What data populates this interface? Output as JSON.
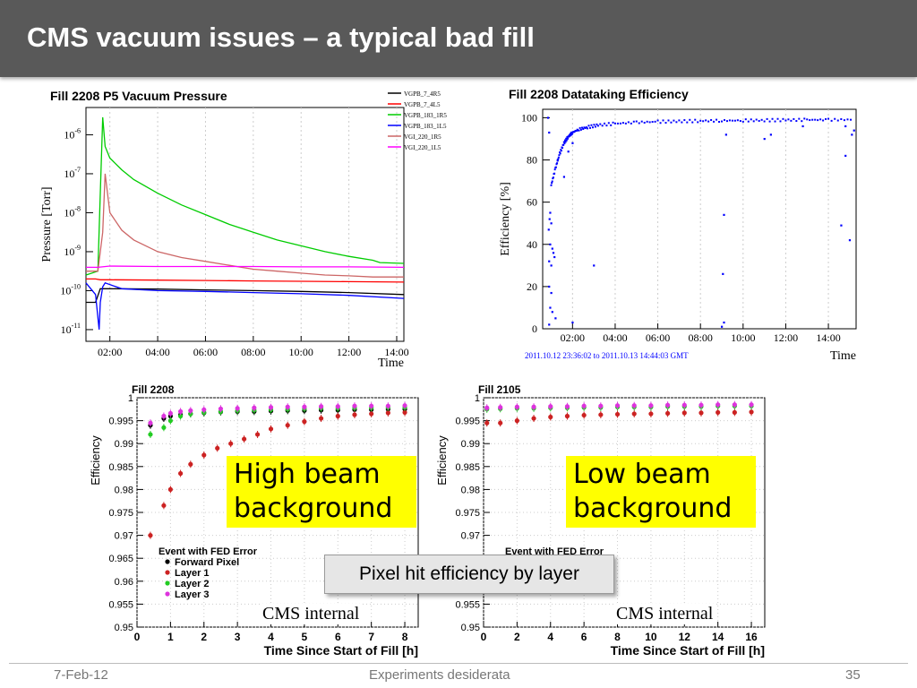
{
  "slide": {
    "title": "CMS vacuum issues – a typical bad fill",
    "footer": {
      "date": "7-Feb-12",
      "center": "Experiments desiderata",
      "page": "35"
    }
  },
  "colors": {
    "title_bar": "#595959",
    "callout_yellow": "#ffff00",
    "callout_gray": "#e6e6e6"
  },
  "callouts": {
    "high_beam": "High beam\nbackground",
    "low_beam": "Low beam\nbackground",
    "pixel_hit": "Pixel hit efficiency by layer",
    "cms_internal_1": "CMS internal",
    "cms_internal_2": "CMS internal"
  },
  "chart_data": [
    {
      "id": "pressure",
      "type": "line",
      "title": "Fill 2208 P5 Vacuum Pressure",
      "xlabel": "Time",
      "ylabel": "Pressure [Torr]",
      "log_y": true,
      "xlim": [
        1.0,
        14.3
      ],
      "ylim_exp": [
        -11.3,
        -5.3
      ],
      "x_ticks": [
        "02:00",
        "04:00",
        "06:00",
        "08:00",
        "10:00",
        "12:00",
        "14:00"
      ],
      "x_tick_hours": [
        2,
        4,
        6,
        8,
        10,
        12,
        14
      ],
      "y_tick_exps": [
        -11,
        -10,
        -9,
        -8,
        -7,
        -6
      ],
      "y_tick_labels": [
        [
          "10",
          "-11"
        ],
        [
          "10",
          "-10"
        ],
        [
          "10",
          "-9"
        ],
        [
          "10",
          "-8"
        ],
        [
          "10",
          "-7"
        ],
        [
          "10",
          "-6"
        ]
      ],
      "series": [
        {
          "name": "VGPB_7_4R5",
          "color": "#000000",
          "x": [
            1.0,
            1.4,
            1.6,
            2,
            4,
            6,
            8,
            10,
            12,
            14.3
          ],
          "log10_y": [
            -10.3,
            -10.3,
            -9.95,
            -9.95,
            -9.96,
            -9.98,
            -10.0,
            -10.02,
            -10.05,
            -10.1
          ]
        },
        {
          "name": "VGPB_7_4L5",
          "color": "#ff0000",
          "x": [
            1.0,
            1.4,
            1.6,
            2,
            4,
            6,
            8,
            10,
            12,
            14.3
          ],
          "log10_y": [
            -9.7,
            -9.7,
            -9.72,
            -9.72,
            -9.73,
            -9.74,
            -9.75,
            -9.76,
            -9.77,
            -9.78
          ]
        },
        {
          "name": "VGPB_183_1R5",
          "color": "#00cc00",
          "x": [
            1.0,
            1.5,
            1.6,
            1.7,
            1.8,
            2.0,
            2.5,
            3,
            4,
            5,
            6,
            7,
            8,
            9,
            10,
            11,
            12,
            13,
            13.3,
            14.3
          ],
          "log10_y": [
            -9.6,
            -9.5,
            -7.5,
            -5.55,
            -6.3,
            -6.6,
            -6.9,
            -7.15,
            -7.5,
            -7.8,
            -8.05,
            -8.3,
            -8.5,
            -8.7,
            -8.85,
            -9.0,
            -9.12,
            -9.22,
            -9.28,
            -9.3
          ]
        },
        {
          "name": "VGPB_183_1L5",
          "color": "#0000ff",
          "x": [
            1.0,
            1.4,
            1.55,
            1.6,
            1.7,
            1.8,
            2.5,
            4,
            6,
            8,
            10,
            12,
            14.3
          ],
          "log10_y": [
            -9.8,
            -10.1,
            -11.0,
            -10.3,
            -9.9,
            -9.8,
            -9.95,
            -10.0,
            -10.02,
            -10.05,
            -10.08,
            -10.12,
            -10.2
          ]
        },
        {
          "name": "VGI_220_1R5",
          "color": "#cc6666",
          "x": [
            1.0,
            1.5,
            1.7,
            1.8,
            2.0,
            2.5,
            3,
            4,
            5,
            6,
            7,
            8,
            9,
            10,
            11,
            12,
            13,
            14.3
          ],
          "log10_y": [
            -9.5,
            -9.5,
            -8.5,
            -7.0,
            -8.0,
            -8.45,
            -8.7,
            -9.0,
            -9.15,
            -9.25,
            -9.35,
            -9.45,
            -9.5,
            -9.55,
            -9.6,
            -9.62,
            -9.65,
            -9.65
          ]
        },
        {
          "name": "VGI_220_1L5",
          "color": "#ff00ff",
          "x": [
            1.0,
            1.5,
            2,
            4,
            6,
            8,
            10,
            12,
            14.3
          ],
          "log10_y": [
            -9.4,
            -9.4,
            -9.37,
            -9.38,
            -9.38,
            -9.38,
            -9.39,
            -9.39,
            -9.4
          ]
        }
      ]
    },
    {
      "id": "datataking",
      "type": "scatter",
      "title": "Fill 2208 Datataking Efficiency",
      "xlabel": "Time",
      "ylabel": "Efficiency [%]",
      "subtitle": "2011.10.12 23:36:02 to 2011.10.13 14:44:03 GMT",
      "xlim": [
        0.6,
        15.3
      ],
      "ylim": [
        0,
        104
      ],
      "x_ticks": [
        "02:00",
        "04:00",
        "06:00",
        "08:00",
        "10:00",
        "12:00",
        "14:00"
      ],
      "x_tick_hours": [
        2,
        4,
        6,
        8,
        10,
        12,
        14
      ],
      "y_ticks": [
        0,
        20,
        40,
        60,
        80,
        100
      ],
      "color": "#0000ff",
      "curve": {
        "x": [
          1.0,
          1.2,
          1.4,
          1.6,
          1.8,
          2.0,
          2.3,
          2.7,
          3.2,
          4.0,
          5.0,
          6.0,
          7.0,
          8.0,
          9.0,
          10.0,
          11.0,
          12.0,
          13.0,
          14.0,
          15.2
        ],
        "y": [
          68,
          76,
          83,
          88,
          91,
          93,
          94.5,
          95.5,
          96.5,
          97.2,
          97.8,
          98.1,
          98.3,
          98.5,
          98.6,
          98.7,
          98.8,
          98.9,
          99,
          99,
          99.1
        ]
      },
      "scatter": {
        "x": [
          0.85,
          0.9,
          0.95,
          0.92,
          1.0,
          0.88,
          0.95,
          1.05,
          1.1,
          0.9,
          1.0,
          1.15,
          0.9,
          1.0,
          0.95,
          1.05,
          1.2,
          0.9,
          1.3,
          1.6,
          1.8,
          2.0,
          9.1,
          9.05,
          9.0,
          9.1,
          9.2,
          14.6,
          14.8,
          14.8,
          15.1,
          15.0,
          15.2,
          11.0,
          11.3,
          12.8,
          3.0,
          2.0
        ],
        "y": [
          100,
          93,
          55,
          52,
          50,
          47,
          40,
          38,
          36,
          32,
          30,
          34,
          20,
          17,
          10,
          8,
          5,
          2,
          80,
          72,
          84,
          88,
          54,
          26,
          1,
          3,
          92,
          49,
          82,
          96,
          92,
          42,
          94,
          90,
          92,
          96,
          30,
          3
        ]
      }
    },
    {
      "id": "fill2208",
      "type": "scatter",
      "title": "Fill 2208",
      "xlabel": "Time Since Start of Fill [h]",
      "ylabel": "Efficiency",
      "xlim": [
        0,
        8.4
      ],
      "ylim": [
        0.95,
        1.0
      ],
      "x_ticks": [
        0,
        1,
        2,
        3,
        4,
        5,
        6,
        7,
        8
      ],
      "y_ticks": [
        0.95,
        0.955,
        0.96,
        0.965,
        0.97,
        0.975,
        0.98,
        0.985,
        0.99,
        0.995,
        1
      ],
      "legend_title": "Event with FED Error",
      "series": [
        {
          "name": "Forward Pixel",
          "color": "#000000",
          "x": [
            0.4,
            0.8,
            1.0,
            1.3,
            1.6,
            2.0,
            2.5,
            3.0,
            3.5,
            4.0,
            4.5,
            5.0,
            5.5,
            6.0,
            6.5,
            7.0,
            7.5,
            8.0
          ],
          "y": [
            0.994,
            0.9955,
            0.996,
            0.9963,
            0.9965,
            0.9967,
            0.9969,
            0.997,
            0.997,
            0.9971,
            0.9972,
            0.9972,
            0.9973,
            0.9973,
            0.9974,
            0.9974,
            0.9975,
            0.9975
          ]
        },
        {
          "name": "Layer 1",
          "color": "#cc2222",
          "x": [
            0.4,
            0.8,
            1.0,
            1.3,
            1.6,
            2.0,
            2.4,
            2.8,
            3.2,
            3.6,
            4.0,
            4.5,
            5.0,
            5.5,
            6.0,
            6.5,
            7.0,
            7.5,
            8.0
          ],
          "y": [
            0.97,
            0.9765,
            0.98,
            0.9835,
            0.9855,
            0.9875,
            0.989,
            0.99,
            0.991,
            0.992,
            0.9932,
            0.994,
            0.9948,
            0.9955,
            0.996,
            0.9963,
            0.9965,
            0.9967,
            0.9968
          ]
        },
        {
          "name": "Layer 2",
          "color": "#22cc22",
          "x": [
            0.4,
            0.8,
            1.0,
            1.3,
            1.6,
            2.0,
            2.5,
            3.0,
            3.5,
            4.0,
            4.5,
            5.0,
            5.5,
            6.0,
            6.5,
            7.0,
            7.5,
            8.0
          ],
          "y": [
            0.992,
            0.9935,
            0.995,
            0.996,
            0.9965,
            0.9968,
            0.997,
            0.9972,
            0.9973,
            0.9974,
            0.9975,
            0.9976,
            0.9977,
            0.9977,
            0.9978,
            0.9978,
            0.9979,
            0.9979
          ]
        },
        {
          "name": "Layer 3",
          "color": "#dd33dd",
          "x": [
            0.4,
            0.8,
            1.0,
            1.3,
            1.6,
            2.0,
            2.5,
            3.0,
            3.5,
            4.0,
            4.5,
            5.0,
            5.5,
            6.0,
            6.5,
            7.0,
            7.5,
            8.0
          ],
          "y": [
            0.9945,
            0.996,
            0.9966,
            0.997,
            0.9972,
            0.9974,
            0.9976,
            0.9977,
            0.9978,
            0.9979,
            0.998,
            0.998,
            0.9981,
            0.9981,
            0.9982,
            0.9982,
            0.9982,
            0.9983
          ]
        }
      ]
    },
    {
      "id": "fill2105",
      "type": "scatter",
      "title": "Fill 2105",
      "xlabel": "Time Since Start of Fill [h]",
      "ylabel": "Efficiency",
      "xlim": [
        0,
        16.8
      ],
      "ylim": [
        0.95,
        1.0
      ],
      "x_ticks": [
        0,
        2,
        4,
        6,
        8,
        10,
        12,
        14,
        16
      ],
      "y_ticks": [
        0.95,
        0.955,
        0.96,
        0.965,
        0.97,
        0.975,
        0.98,
        0.985,
        0.99,
        0.995,
        1
      ],
      "legend_title": "Event with FED Error",
      "series": [
        {
          "name": "Layer 1",
          "color": "#cc2222",
          "x": [
            0.2,
            1,
            2,
            3,
            4,
            5,
            6,
            7,
            8,
            9,
            10,
            11,
            12,
            13,
            14,
            15,
            16
          ],
          "y": [
            0.9945,
            0.9945,
            0.995,
            0.9955,
            0.9958,
            0.996,
            0.9962,
            0.9963,
            0.9964,
            0.9965,
            0.9965,
            0.9966,
            0.9967,
            0.9967,
            0.9968,
            0.9968,
            0.9969
          ]
        },
        {
          "name": "Layer 2",
          "color": "#22cc22",
          "x": [
            0.2,
            1,
            2,
            3,
            4,
            5,
            6,
            7,
            8,
            9,
            10,
            11,
            12,
            13,
            14,
            15,
            16
          ],
          "y": [
            0.9975,
            0.9976,
            0.9977,
            0.9977,
            0.9978,
            0.9978,
            0.9979,
            0.9979,
            0.998,
            0.998,
            0.998,
            0.9981,
            0.9981,
            0.9981,
            0.9982,
            0.9982,
            0.9982
          ]
        },
        {
          "name": "Layer 3",
          "color": "#dd33dd",
          "x": [
            0.2,
            1,
            2,
            3,
            4,
            5,
            6,
            7,
            8,
            9,
            10,
            11,
            12,
            13,
            14,
            15,
            16
          ],
          "y": [
            0.9978,
            0.9979,
            0.998,
            0.998,
            0.9981,
            0.9981,
            0.9982,
            0.9982,
            0.9983,
            0.9983,
            0.9983,
            0.9984,
            0.9984,
            0.9984,
            0.9985,
            0.9985,
            0.9985
          ]
        }
      ]
    }
  ]
}
